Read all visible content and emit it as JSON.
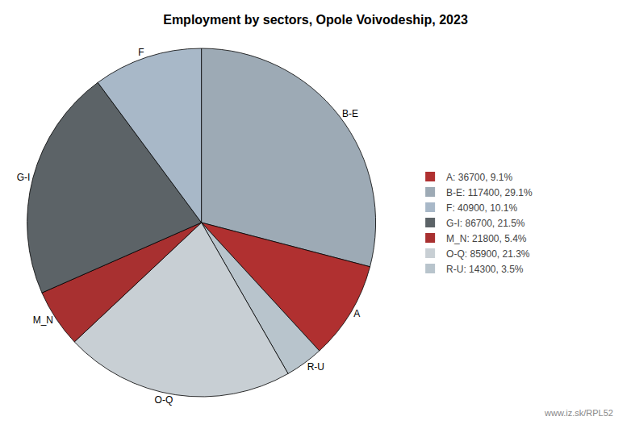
{
  "chart_data": {
    "type": "pie",
    "title": "Employment by sectors, Opole Voivodeship, 2023",
    "categories": [
      "B-E",
      "A",
      "R-U",
      "O-Q",
      "M_N",
      "G-I",
      "F"
    ],
    "values": [
      117400,
      36700,
      14300,
      85900,
      21800,
      86700,
      40900
    ],
    "colors": [
      "#9daab5",
      "#b03030",
      "#b8c4cc",
      "#c8cfd4",
      "#a83030",
      "#5c6367",
      "#a8b8c8"
    ],
    "series": [
      {
        "name": "A: 36700, 9.1%",
        "color": "#b03030"
      },
      {
        "name": "B-E: 117400, 29.1%",
        "color": "#9daab5"
      },
      {
        "name": "F: 40900, 10.1%",
        "color": "#a8b8c8"
      },
      {
        "name": "G-I: 86700, 21.5%",
        "color": "#5c6367"
      },
      {
        "name": "M_N: 21800, 5.4%",
        "color": "#a83030"
      },
      {
        "name": "O-Q: 85900, 21.3%",
        "color": "#c8cfd4"
      },
      {
        "name": "R-U: 14300, 3.5%",
        "color": "#b8c4cc"
      }
    ],
    "legend": "right",
    "annotations": [
      "www.iz.sk/RPL52"
    ]
  }
}
